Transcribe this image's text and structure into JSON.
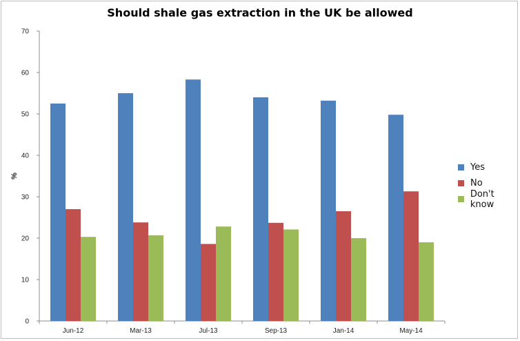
{
  "chart_data": {
    "type": "bar",
    "title": "Should shale gas extraction in the UK be allowed",
    "xlabel": "",
    "ylabel": "%",
    "ylim": [
      0,
      70
    ],
    "yticks": [
      0,
      10,
      20,
      30,
      40,
      50,
      60,
      70
    ],
    "categories": [
      "Jun-12",
      "Mar-13",
      "Jul-13",
      "Sep-13",
      "Jan-14",
      "May-14"
    ],
    "series": [
      {
        "name": "Yes",
        "color": "#4f81bd",
        "values": [
          52.5,
          55,
          58.3,
          54,
          53.2,
          49.8
        ]
      },
      {
        "name": "No",
        "color": "#c0504d",
        "values": [
          27,
          23.8,
          18.6,
          23.7,
          26.5,
          31.3
        ]
      },
      {
        "name": "Don't know",
        "color": "#9bbb59",
        "values": [
          20.3,
          20.7,
          22.8,
          22.1,
          20,
          19
        ]
      }
    ],
    "grid": false,
    "legend_position": "right"
  }
}
